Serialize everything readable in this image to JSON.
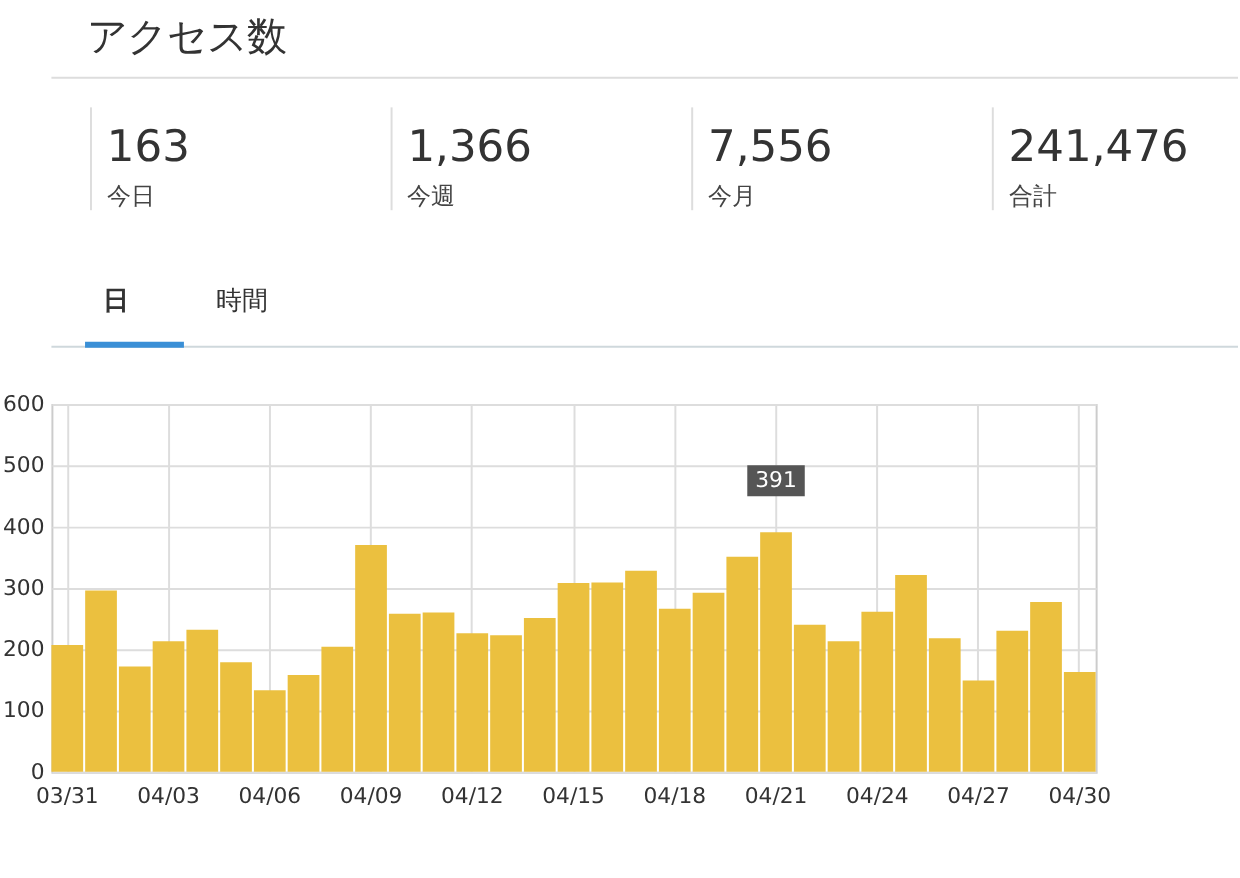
{
  "chart_data": [
    {
      "type": "other",
      "title": "アクセス数",
      "categories": [
        "今日",
        "今週",
        "今月",
        "合計"
      ],
      "value_labels": [
        "163",
        "1,366",
        "7,556",
        "241,476"
      ],
      "annotations": [
        "日",
        "時間"
      ]
    },
    {
      "type": "bar",
      "categories": [
        "03/31",
        null,
        null,
        "04/03",
        null,
        null,
        "04/06",
        null,
        null,
        "04/09",
        null,
        null,
        "04/12",
        null,
        null,
        "04/15",
        null,
        null,
        "04/18",
        null,
        null,
        "04/21",
        null,
        null,
        "04/24",
        null,
        null,
        "04/27",
        null,
        null,
        "04/30"
      ],
      "values": [
        207,
        296,
        172,
        213,
        232,
        179,
        133,
        158,
        204,
        370,
        258,
        260,
        226,
        223,
        251,
        308,
        309,
        328,
        266,
        292,
        351,
        391,
        240,
        213,
        261,
        321,
        218,
        149,
        230,
        277,
        163
      ],
      "value_labels": [
        null,
        null,
        null,
        null,
        null,
        null,
        null,
        null,
        null,
        null,
        null,
        null,
        null,
        null,
        null,
        null,
        null,
        null,
        null,
        null,
        null,
        "391",
        null,
        null,
        null,
        null,
        null,
        null,
        null,
        null,
        null
      ],
      "color": "#ebc03f",
      "ylim": [
        0,
        600
      ],
      "yticks": [
        0,
        100,
        200,
        300,
        400,
        500,
        600
      ],
      "grid": true
    }
  ]
}
